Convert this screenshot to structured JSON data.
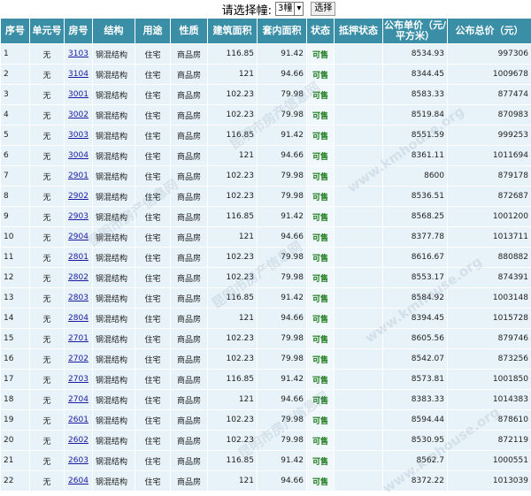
{
  "selector": {
    "label": "请选择幢:",
    "option": "3幢",
    "button": "选择"
  },
  "table": {
    "columns": [
      "序号",
      "单元号",
      "房号",
      "结构",
      "用途",
      "性质",
      "建筑面积",
      "套内面积",
      "状态",
      "抵押状态",
      "公布单价（元/平方米）",
      "公布总价（元）"
    ],
    "rows": [
      {
        "no": 1,
        "unit": "无",
        "room": "3103",
        "structure": "钢混结构",
        "use": "住宅",
        "nature": "商品房",
        "area": 116.85,
        "inner_area": 91.42,
        "status": "可售",
        "unit_price": 8534.93,
        "total_price": 997306
      },
      {
        "no": 2,
        "unit": "无",
        "room": "3104",
        "structure": "钢混结构",
        "use": "住宅",
        "nature": "商品房",
        "area": 121,
        "inner_area": 94.66,
        "status": "可售",
        "unit_price": 8344.45,
        "total_price": 1009678
      },
      {
        "no": 3,
        "unit": "无",
        "room": "3001",
        "structure": "钢混结构",
        "use": "住宅",
        "nature": "商品房",
        "area": 102.23,
        "inner_area": 79.98,
        "status": "可售",
        "unit_price": 8583.33,
        "total_price": 877474
      },
      {
        "no": 4,
        "unit": "无",
        "room": "3002",
        "structure": "钢混结构",
        "use": "住宅",
        "nature": "商品房",
        "area": 102.23,
        "inner_area": 79.98,
        "status": "可售",
        "unit_price": 8519.84,
        "total_price": 870983
      },
      {
        "no": 5,
        "unit": "无",
        "room": "3003",
        "structure": "钢混结构",
        "use": "住宅",
        "nature": "商品房",
        "area": 116.85,
        "inner_area": 91.42,
        "status": "可售",
        "unit_price": 8551.59,
        "total_price": 999253
      },
      {
        "no": 6,
        "unit": "无",
        "room": "3004",
        "structure": "钢混结构",
        "use": "住宅",
        "nature": "商品房",
        "area": 121,
        "inner_area": 94.66,
        "status": "可售",
        "unit_price": 8361.11,
        "total_price": 1011694
      },
      {
        "no": 7,
        "unit": "无",
        "room": "2901",
        "structure": "钢混结构",
        "use": "住宅",
        "nature": "商品房",
        "area": 102.23,
        "inner_area": 79.98,
        "status": "可售",
        "unit_price": 8600,
        "total_price": 879178
      },
      {
        "no": 8,
        "unit": "无",
        "room": "2902",
        "structure": "钢混结构",
        "use": "住宅",
        "nature": "商品房",
        "area": 102.23,
        "inner_area": 79.98,
        "status": "可售",
        "unit_price": 8536.51,
        "total_price": 872687
      },
      {
        "no": 9,
        "unit": "无",
        "room": "2903",
        "structure": "钢混结构",
        "use": "住宅",
        "nature": "商品房",
        "area": 116.85,
        "inner_area": 91.42,
        "status": "可售",
        "unit_price": 8568.25,
        "total_price": 1001200
      },
      {
        "no": 10,
        "unit": "无",
        "room": "2904",
        "structure": "钢混结构",
        "use": "住宅",
        "nature": "商品房",
        "area": 121,
        "inner_area": 94.66,
        "status": "可售",
        "unit_price": 8377.78,
        "total_price": 1013711
      },
      {
        "no": 11,
        "unit": "无",
        "room": "2801",
        "structure": "钢混结构",
        "use": "住宅",
        "nature": "商品房",
        "area": 102.23,
        "inner_area": 79.98,
        "status": "可售",
        "unit_price": 8616.67,
        "total_price": 880882
      },
      {
        "no": 12,
        "unit": "无",
        "room": "2802",
        "structure": "钢混结构",
        "use": "住宅",
        "nature": "商品房",
        "area": 102.23,
        "inner_area": 79.98,
        "status": "可售",
        "unit_price": 8553.17,
        "total_price": 874391
      },
      {
        "no": 13,
        "unit": "无",
        "room": "2803",
        "structure": "钢混结构",
        "use": "住宅",
        "nature": "商品房",
        "area": 116.85,
        "inner_area": 91.42,
        "status": "可售",
        "unit_price": 8584.92,
        "total_price": 1003148
      },
      {
        "no": 14,
        "unit": "无",
        "room": "2804",
        "structure": "钢混结构",
        "use": "住宅",
        "nature": "商品房",
        "area": 121,
        "inner_area": 94.66,
        "status": "可售",
        "unit_price": 8394.45,
        "total_price": 1015728
      },
      {
        "no": 15,
        "unit": "无",
        "room": "2701",
        "structure": "钢混结构",
        "use": "住宅",
        "nature": "商品房",
        "area": 102.23,
        "inner_area": 79.98,
        "status": "可售",
        "unit_price": 8605.56,
        "total_price": 879746
      },
      {
        "no": 16,
        "unit": "无",
        "room": "2702",
        "structure": "钢混结构",
        "use": "住宅",
        "nature": "商品房",
        "area": 102.23,
        "inner_area": 79.98,
        "status": "可售",
        "unit_price": 8542.07,
        "total_price": 873256
      },
      {
        "no": 17,
        "unit": "无",
        "room": "2703",
        "structure": "钢混结构",
        "use": "住宅",
        "nature": "商品房",
        "area": 116.85,
        "inner_area": 91.42,
        "status": "可售",
        "unit_price": 8573.81,
        "total_price": 1001850
      },
      {
        "no": 18,
        "unit": "无",
        "room": "2704",
        "structure": "钢混结构",
        "use": "住宅",
        "nature": "商品房",
        "area": 121,
        "inner_area": 94.66,
        "status": "可售",
        "unit_price": 8383.33,
        "total_price": 1014383
      },
      {
        "no": 19,
        "unit": "无",
        "room": "2601",
        "structure": "钢混结构",
        "use": "住宅",
        "nature": "商品房",
        "area": 102.23,
        "inner_area": 79.98,
        "status": "可售",
        "unit_price": 8594.44,
        "total_price": 878610
      },
      {
        "no": 20,
        "unit": "无",
        "room": "2602",
        "structure": "钢混结构",
        "use": "住宅",
        "nature": "商品房",
        "area": 102.23,
        "inner_area": 79.98,
        "status": "可售",
        "unit_price": 8530.95,
        "total_price": 872119
      },
      {
        "no": 21,
        "unit": "无",
        "room": "2603",
        "structure": "钢混结构",
        "use": "住宅",
        "nature": "商品房",
        "area": 116.85,
        "inner_area": 91.42,
        "status": "可售",
        "unit_price": 8562.7,
        "total_price": 1000551
      },
      {
        "no": 22,
        "unit": "无",
        "room": "2604",
        "structure": "钢混结构",
        "use": "住宅",
        "nature": "商品房",
        "area": 121,
        "inner_area": 94.66,
        "status": "可售",
        "unit_price": 8372.22,
        "total_price": 1013039
      }
    ]
  },
  "watermark": [
    "昆明市房产信息网",
    "www.kmhouse.org"
  ]
}
